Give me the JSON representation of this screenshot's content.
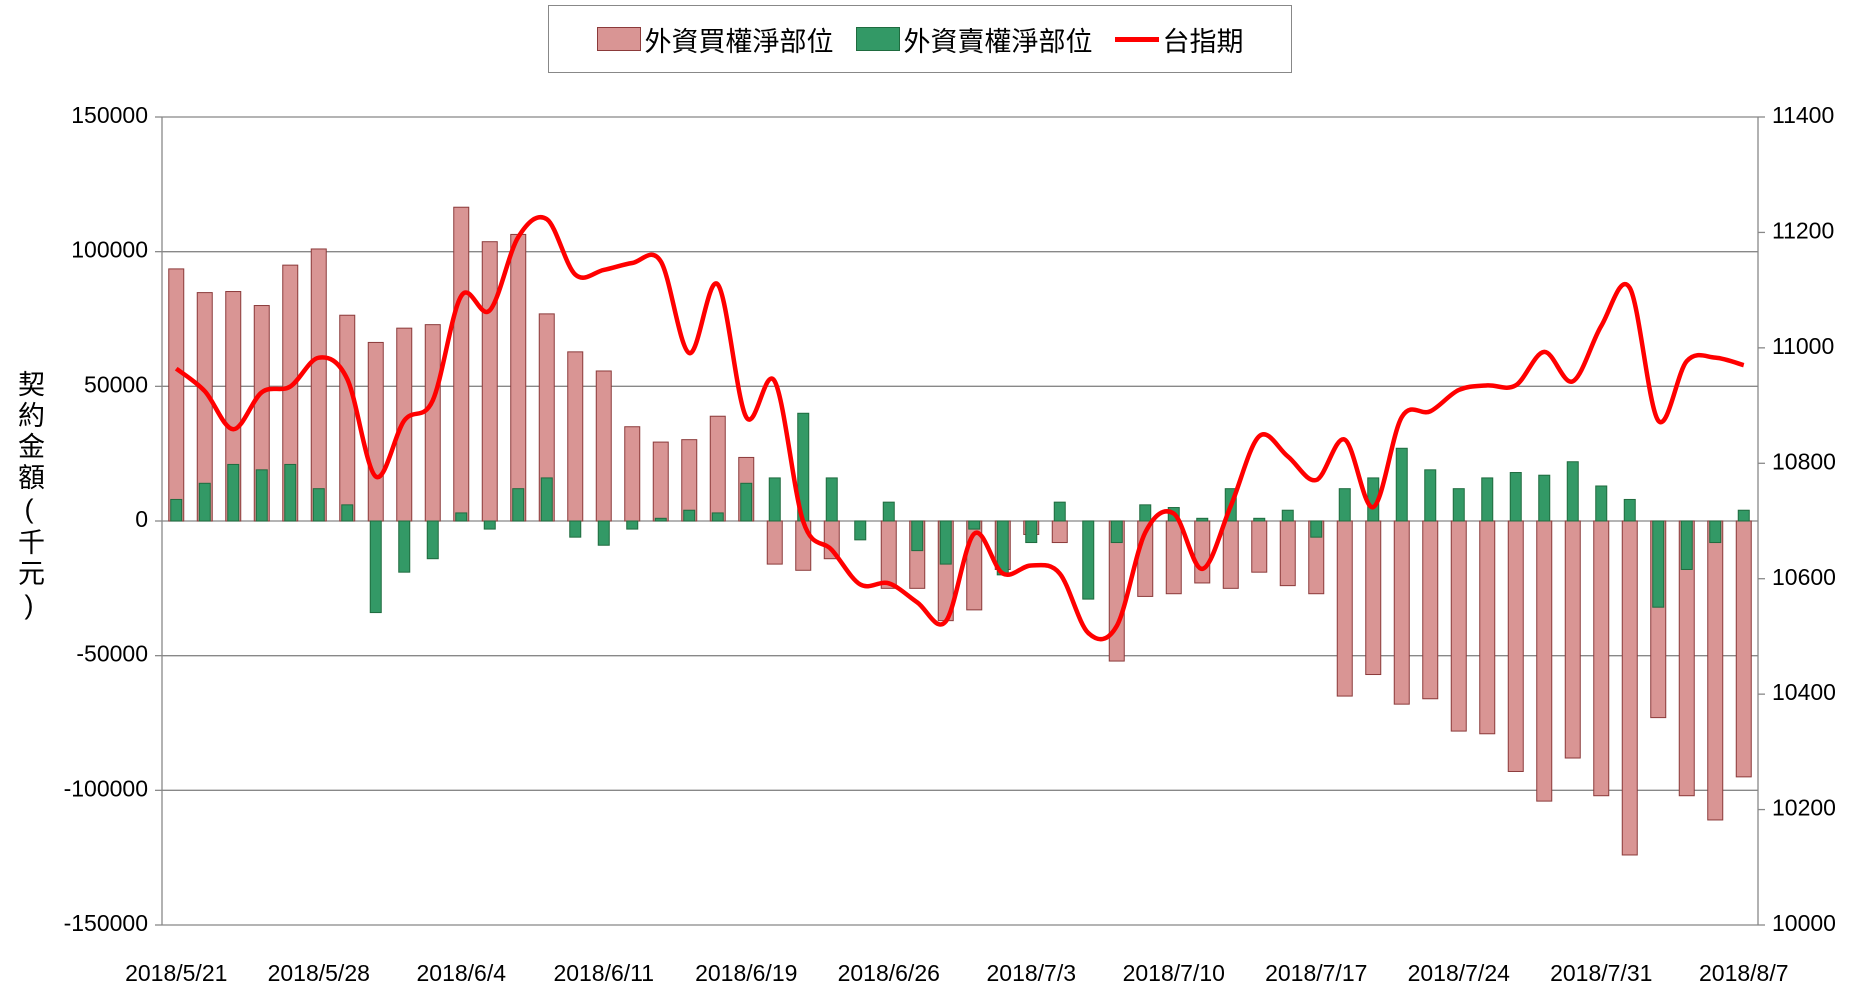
{
  "chart_data": {
    "type": "bar",
    "y_label": "契約金額(千元)",
    "categories": [
      "2018/5/21",
      null,
      null,
      null,
      null,
      "2018/5/28",
      null,
      null,
      null,
      null,
      "2018/6/4",
      null,
      null,
      null,
      null,
      "2018/6/11",
      null,
      null,
      null,
      null,
      "2018/6/19",
      null,
      null,
      null,
      null,
      "2018/6/26",
      null,
      null,
      null,
      null,
      "2018/7/3",
      null,
      null,
      null,
      null,
      "2018/7/10",
      null,
      null,
      null,
      null,
      "2018/7/17",
      null,
      null,
      null,
      null,
      "2018/7/24",
      null,
      null,
      null,
      null,
      "2018/7/31",
      null,
      null,
      null,
      null,
      "2018/8/7"
    ],
    "series": [
      {
        "name": "外資買權淨部位",
        "type": "bar",
        "color": "#d99594",
        "stroke": "#8b3a3a",
        "values": [
          93600,
          84800,
          85200,
          80000,
          95000,
          101000,
          76400,
          66300,
          71600,
          72900,
          116500,
          103700,
          106400,
          76900,
          62800,
          55700,
          35000,
          29300,
          30200,
          38900,
          23600,
          -16000,
          -18300,
          -14000,
          0,
          -25000,
          -25000,
          -37000,
          -33000,
          -18000,
          -5000,
          -8000,
          0,
          -52000,
          -28000,
          -27000,
          -23000,
          -25000,
          -19000,
          -24000,
          -27000,
          -65000,
          -57000,
          -68000,
          -66000,
          -78000,
          -79000,
          -93000,
          -104000,
          -88000,
          -102000,
          -124000,
          -73000,
          -102000,
          -111000,
          -95000
        ]
      },
      {
        "name": "外資賣權淨部位",
        "type": "bar",
        "color": "#339966",
        "stroke": "#1f6b3f",
        "values": [
          8000,
          14000,
          21000,
          19000,
          21000,
          12000,
          6000,
          -34000,
          -19000,
          -14000,
          3000,
          -3000,
          12000,
          16000,
          -6000,
          -9000,
          -3000,
          1000,
          4000,
          3000,
          14000,
          16000,
          40000,
          16000,
          -7000,
          7000,
          -11000,
          -16000,
          -3000,
          -20000,
          -8000,
          7000,
          -29000,
          -8000,
          6000,
          5000,
          1000,
          12000,
          1000,
          4000,
          -6000,
          12000,
          16000,
          27000,
          19000,
          12000,
          16000,
          18000,
          17000,
          22000,
          13000,
          8000,
          -32000,
          -18000,
          -8000,
          4000
        ]
      },
      {
        "name": "台指期",
        "type": "line",
        "color": "#ff0000",
        "axis": "y2",
        "values": [
          10964,
          10925,
          10859,
          10923,
          10933,
          10983,
          10946,
          10777,
          10874,
          10909,
          11090,
          11065,
          11192,
          11223,
          11127,
          11135,
          11147,
          11150,
          10991,
          11110,
          10880,
          10942,
          10699,
          10650,
          10590,
          10592,
          10559,
          10526,
          10678,
          10609,
          10623,
          10609,
          10506,
          10518,
          10680,
          10713,
          10617,
          10726,
          10847,
          10812,
          10771,
          10841,
          10724,
          10880,
          10890,
          10927,
          10935,
          10935,
          10993,
          10942,
          11038,
          11104,
          10874,
          10977,
          10983,
          10970
        ]
      }
    ],
    "ylim": [
      -150000,
      150000
    ],
    "yticks": [
      -150000,
      -100000,
      -50000,
      0,
      50000,
      100000,
      150000
    ],
    "y2lim": [
      10000,
      11400
    ],
    "y2ticks": [
      10000,
      10200,
      10400,
      10600,
      10800,
      11000,
      11200,
      11400
    ],
    "grid": true,
    "legend": "top"
  }
}
